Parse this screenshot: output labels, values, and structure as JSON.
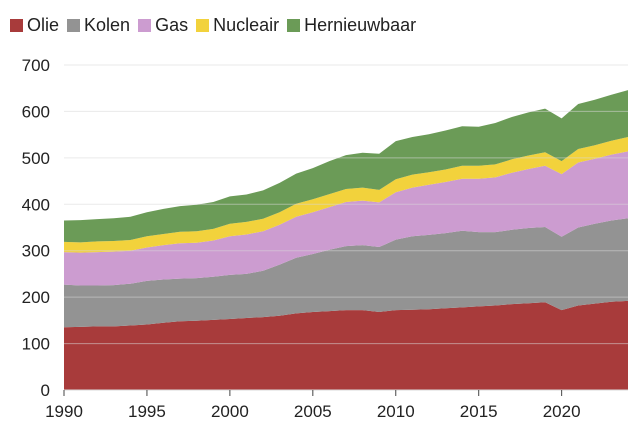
{
  "chart_data": {
    "type": "area",
    "stacked": true,
    "title": "",
    "xlabel": "",
    "ylabel": "",
    "xlim": [
      1990,
      2024
    ],
    "ylim": [
      0,
      700
    ],
    "yticks": [
      0,
      100,
      200,
      300,
      400,
      500,
      600,
      700
    ],
    "xticks": [
      1990,
      1995,
      2000,
      2005,
      2010,
      2015,
      2020
    ],
    "grid": true,
    "legend_position": "top-left",
    "x": [
      1990,
      1991,
      1992,
      1993,
      1994,
      1995,
      1996,
      1997,
      1998,
      1999,
      2000,
      2001,
      2002,
      2003,
      2004,
      2005,
      2006,
      2007,
      2008,
      2009,
      2010,
      2011,
      2012,
      2013,
      2014,
      2015,
      2016,
      2017,
      2018,
      2019,
      2020,
      2021,
      2022,
      2023,
      2024
    ],
    "series": [
      {
        "name": "Olie",
        "color": "#a83b3b",
        "values": [
          135,
          136,
          137,
          137,
          139,
          141,
          145,
          148,
          149,
          151,
          153,
          155,
          157,
          160,
          165,
          168,
          170,
          172,
          172,
          168,
          172,
          173,
          174,
          176,
          178,
          180,
          182,
          185,
          187,
          189,
          172,
          182,
          186,
          190,
          192
        ]
      },
      {
        "name": "Kolen",
        "color": "#939393",
        "values": [
          92,
          89,
          88,
          89,
          90,
          94,
          93,
          92,
          92,
          93,
          95,
          95,
          100,
          110,
          120,
          125,
          132,
          138,
          140,
          140,
          152,
          158,
          160,
          162,
          165,
          160,
          158,
          160,
          162,
          162,
          158,
          168,
          172,
          175,
          178
        ]
      },
      {
        "name": "Gas",
        "color": "#cc9cd0",
        "values": [
          70,
          71,
          72,
          72,
          71,
          72,
          74,
          76,
          76,
          78,
          83,
          85,
          85,
          86,
          88,
          90,
          92,
          95,
          96,
          96,
          102,
          105,
          108,
          110,
          112,
          115,
          118,
          123,
          127,
          132,
          135,
          140,
          140,
          142,
          144
        ]
      },
      {
        "name": "Nucleair",
        "color": "#f2d23c",
        "values": [
          22,
          22,
          23,
          23,
          23,
          24,
          24,
          25,
          25,
          25,
          27,
          27,
          27,
          27,
          28,
          28,
          28,
          28,
          28,
          27,
          28,
          28,
          27,
          27,
          28,
          28,
          28,
          29,
          29,
          29,
          28,
          29,
          29,
          30,
          31
        ]
      },
      {
        "name": "Hernieuwbaar",
        "color": "#6b9b57",
        "values": [
          46,
          48,
          48,
          49,
          50,
          52,
          54,
          55,
          57,
          58,
          59,
          59,
          61,
          63,
          65,
          67,
          71,
          73,
          75,
          78,
          82,
          81,
          82,
          84,
          85,
          84,
          89,
          91,
          93,
          94,
          92,
          97,
          98,
          99,
          101
        ]
      }
    ]
  }
}
